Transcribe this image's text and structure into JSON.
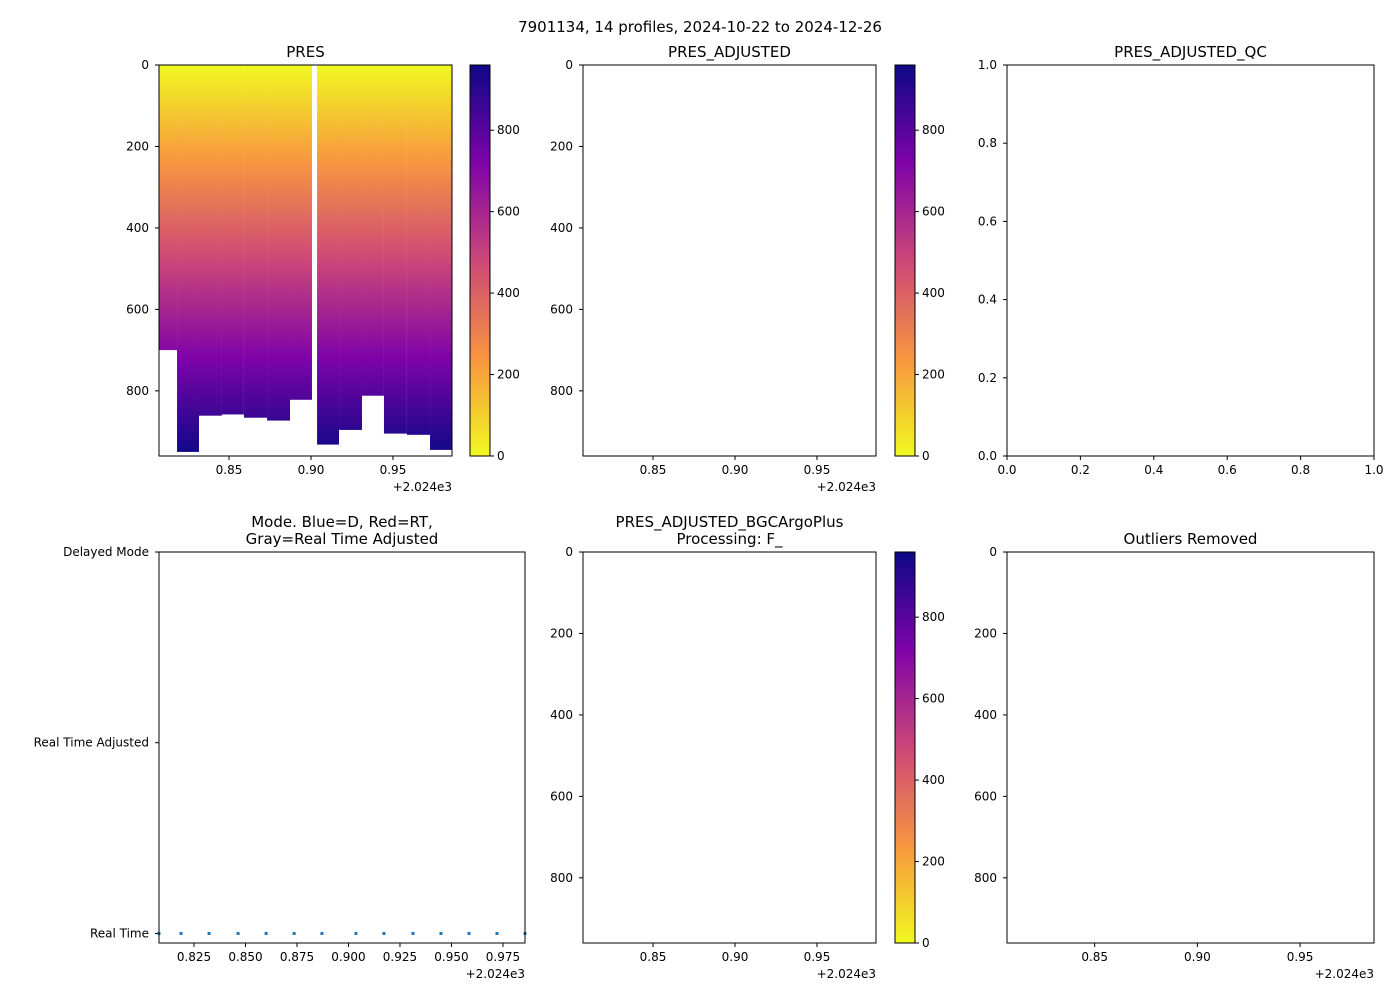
{
  "suptitle": "7901134, 14 profiles, 2024-10-22 to 2024-12-26",
  "chart_data": [
    {
      "type": "heatmap",
      "title": "PRES",
      "xlabel": "",
      "ylabel": "",
      "x_offset_label": "+2.024e3",
      "xlim": [
        0.8073,
        0.986
      ],
      "ylim": [
        960,
        0
      ],
      "xticks": [
        "0.85",
        "0.90",
        "0.95"
      ],
      "yticks": [
        "0",
        "200",
        "400",
        "600",
        "800"
      ],
      "columns": [
        {
          "x0": 0.8073,
          "x1": 0.8183,
          "max": 700
        },
        {
          "x0": 0.8183,
          "x1": 0.8317,
          "max": 950
        },
        {
          "x0": 0.8317,
          "x1": 0.8457,
          "max": 861
        },
        {
          "x0": 0.8457,
          "x1": 0.8591,
          "max": 858
        },
        {
          "x0": 0.8591,
          "x1": 0.8732,
          "max": 866
        },
        {
          "x0": 0.8732,
          "x1": 0.8872,
          "max": 873
        },
        {
          "x0": 0.8872,
          "x1": 0.9006,
          "max": 822
        },
        {
          "x0": 0.9037,
          "x1": 0.9171,
          "max": 932
        },
        {
          "x0": 0.9171,
          "x1": 0.9311,
          "max": 896
        },
        {
          "x0": 0.9311,
          "x1": 0.9445,
          "max": 812
        },
        {
          "x0": 0.9445,
          "x1": 0.9585,
          "max": 905
        },
        {
          "x0": 0.9585,
          "x1": 0.9726,
          "max": 908
        },
        {
          "x0": 0.9726,
          "x1": 0.986,
          "max": 945
        }
      ],
      "colorbar": {
        "cmap": "plasma_r",
        "range": [
          0,
          960
        ],
        "ticks": [
          "0",
          "200",
          "400",
          "600",
          "800"
        ]
      }
    },
    {
      "type": "heatmap",
      "title": "PRES_ADJUSTED",
      "x_offset_label": "+2.024e3",
      "xlim": [
        0.8073,
        0.986
      ],
      "ylim": [
        960,
        0
      ],
      "xticks": [
        "0.85",
        "0.90",
        "0.95"
      ],
      "yticks": [
        "0",
        "200",
        "400",
        "600",
        "800"
      ],
      "columns": [],
      "colorbar": {
        "cmap": "plasma_r",
        "range": [
          0,
          960
        ],
        "ticks": [
          "0",
          "200",
          "400",
          "600",
          "800"
        ]
      }
    },
    {
      "type": "scatter",
      "title": "PRES_ADJUSTED_QC",
      "xlim": [
        0,
        1
      ],
      "ylim": [
        0,
        1
      ],
      "xticks": [
        "0.0",
        "0.2",
        "0.4",
        "0.6",
        "0.8",
        "1.0"
      ],
      "yticks": [
        "0.0",
        "0.2",
        "0.4",
        "0.6",
        "0.8",
        "1.0"
      ],
      "points": []
    },
    {
      "type": "scatter",
      "title": "Mode. Blue=D, Red=RT,\nGray=Real Time Adjusted",
      "title_lines": [
        "Mode. Blue=D, Red=RT,",
        "Gray=Real Time Adjusted"
      ],
      "x_offset_label": "+2.024e3",
      "xlim": [
        0.808,
        0.9857
      ],
      "ylim": [
        -0.05,
        2
      ],
      "xticks": [
        "0.825",
        "0.850",
        "0.875",
        "0.900",
        "0.925",
        "0.950",
        "0.975"
      ],
      "yticks": [
        "Real Time",
        "Real Time Adjusted",
        "Delayed Mode"
      ],
      "x": [
        0.808,
        0.8187,
        0.8323,
        0.8464,
        0.86,
        0.8736,
        0.8871,
        0.9036,
        0.9172,
        0.9313,
        0.9449,
        0.9585,
        0.9721,
        0.9857
      ],
      "y": [
        0,
        0,
        0,
        0,
        0,
        0,
        0,
        0,
        0,
        0,
        0,
        0,
        0,
        0
      ],
      "color": "#1f77b4"
    },
    {
      "type": "heatmap",
      "title": "PRES_ADJUSTED_BGCArgoPlus\nProcessing: F_",
      "title_lines": [
        "PRES_ADJUSTED_BGCArgoPlus",
        "Processing: F_"
      ],
      "x_offset_label": "+2.024e3",
      "xlim": [
        0.8073,
        0.986
      ],
      "ylim": [
        960,
        0
      ],
      "xticks": [
        "0.85",
        "0.90",
        "0.95"
      ],
      "yticks": [
        "0",
        "200",
        "400",
        "600",
        "800"
      ],
      "columns": [],
      "colorbar": {
        "cmap": "plasma_r",
        "range": [
          0,
          960
        ],
        "ticks": [
          "0",
          "200",
          "400",
          "600",
          "800"
        ]
      }
    },
    {
      "type": "heatmap",
      "title": "Outliers Removed",
      "x_offset_label": "+2.024e3",
      "xlim": [
        0.8073,
        0.986
      ],
      "ylim": [
        960,
        0
      ],
      "xticks": [
        "0.85",
        "0.90",
        "0.95"
      ],
      "yticks": [
        "0",
        "200",
        "400",
        "600",
        "800"
      ],
      "columns": []
    }
  ]
}
